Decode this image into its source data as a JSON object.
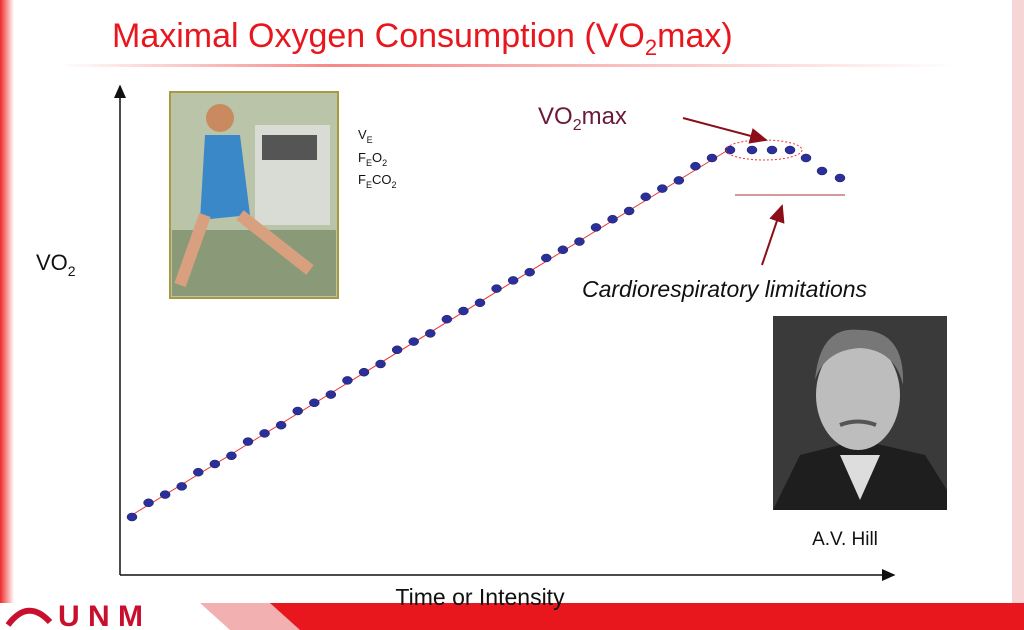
{
  "title": {
    "text": "Maximal Oxygen Consumption (VO",
    "sub": "2",
    "tail": "max)"
  },
  "y_axis_label": {
    "text": "VO",
    "sub": "2"
  },
  "x_axis_label": "Time or Intensity",
  "peak_label": {
    "text": "VO",
    "sub": "2",
    "tail": "max"
  },
  "limit_label": "Cardiorespiratory limitations",
  "portrait_caption": "A.V. Hill",
  "measurements": [
    [
      "V",
      "E"
    ],
    [
      "F",
      "E",
      "O",
      "2"
    ],
    [
      "F",
      "E",
      "CO",
      "2"
    ]
  ],
  "logo": "U N M"
}
